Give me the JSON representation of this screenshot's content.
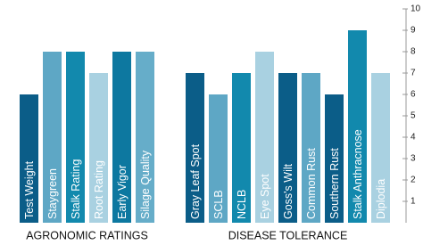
{
  "chart_data": {
    "type": "bar",
    "groups": [
      {
        "name": "AGRONOMIC RATINGS",
        "categories": [
          "Test Weight",
          "Staygreen",
          "Stalk Rating",
          "Root Rating",
          "Early Vigor",
          "Silage Quality"
        ],
        "values": [
          6,
          8,
          8,
          7,
          8,
          8
        ],
        "colors": [
          "#0b5d88",
          "#5ea7c5",
          "#1289ad",
          "#a9d1e1",
          "#0d78a0",
          "#66adc9"
        ]
      },
      {
        "name": "DISEASE TOLERANCE",
        "categories": [
          "Gray Leaf Spot",
          "SCLB",
          "NCLB",
          "Eye Spot",
          "Goss's Wilt",
          "Common Rust",
          "Southern Rust",
          "Stalk Anthracnose",
          "Diplodia"
        ],
        "values": [
          7,
          6,
          7,
          8,
          7,
          7,
          6,
          9,
          7
        ],
        "colors": [
          "#0b5d88",
          "#5ea7c5",
          "#1289ad",
          "#a9d1e1",
          "#0b5d88",
          "#5ea7c5",
          "#0b5d88",
          "#1289ad",
          "#a9d1e1"
        ]
      }
    ],
    "ylim": [
      0,
      10
    ],
    "yticks": [
      1,
      2,
      3,
      4,
      5,
      6,
      7,
      8,
      9,
      10
    ]
  }
}
